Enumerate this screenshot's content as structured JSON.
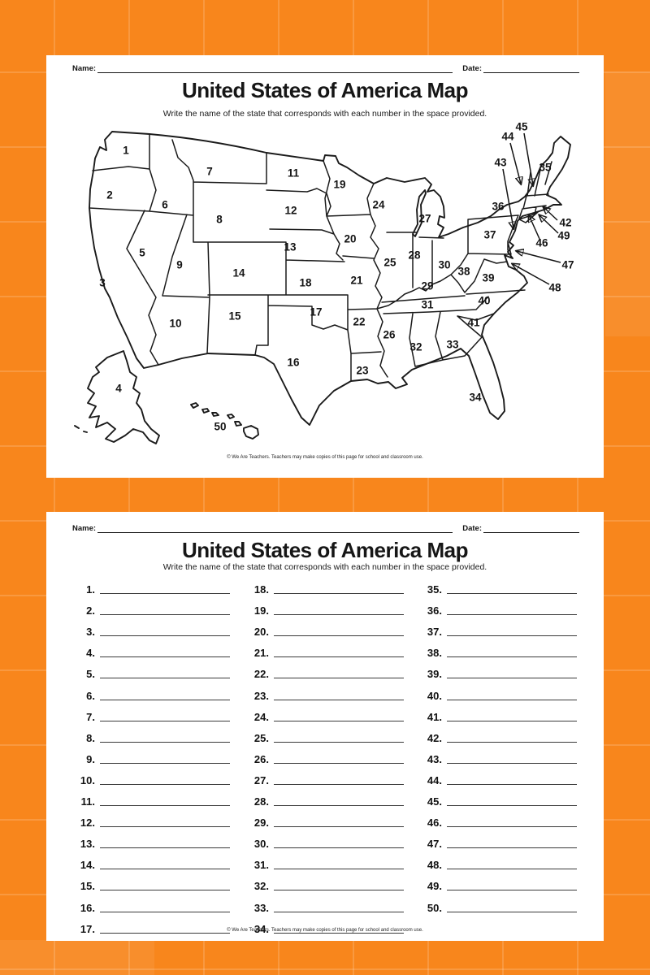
{
  "page1": {
    "name_label": "Name:",
    "date_label": "Date:",
    "title": "United States of America Map",
    "subtitle": "Write the name of the state that corresponds with each number in the space provided.",
    "footer": "© We Are Teachers. Teachers may make copies of this page for school and classroom use.",
    "map": {
      "state_numbers": [
        [
          1,
          75,
          37
        ],
        [
          2,
          55,
          92
        ],
        [
          3,
          46,
          200
        ],
        [
          4,
          66,
          330
        ],
        [
          5,
          95,
          163
        ],
        [
          6,
          123,
          104
        ],
        [
          7,
          178,
          63
        ],
        [
          8,
          190,
          122
        ],
        [
          9,
          141,
          178
        ],
        [
          10,
          136,
          250
        ],
        [
          11,
          281,
          65
        ],
        [
          12,
          278,
          111
        ],
        [
          13,
          277,
          156
        ],
        [
          14,
          214,
          188
        ],
        [
          15,
          209,
          241
        ],
        [
          16,
          281,
          298
        ],
        [
          17,
          309,
          236
        ],
        [
          18,
          296,
          200
        ],
        [
          19,
          338,
          79
        ],
        [
          20,
          351,
          146
        ],
        [
          21,
          359,
          197
        ],
        [
          22,
          362,
          248
        ],
        [
          23,
          366,
          308
        ],
        [
          24,
          386,
          104
        ],
        [
          25,
          400,
          175
        ],
        [
          26,
          399,
          264
        ],
        [
          27,
          443,
          121
        ],
        [
          28,
          430,
          166
        ],
        [
          29,
          446,
          204
        ],
        [
          30,
          467,
          178
        ],
        [
          31,
          446,
          227
        ],
        [
          32,
          432,
          279
        ],
        [
          33,
          477,
          276
        ],
        [
          34,
          505,
          341
        ],
        [
          35,
          591,
          58
        ],
        [
          36,
          533,
          106
        ],
        [
          37,
          523,
          141
        ],
        [
          38,
          491,
          186
        ],
        [
          39,
          521,
          194
        ],
        [
          40,
          516,
          222
        ],
        [
          41,
          503,
          249
        ],
        [
          42,
          616,
          126
        ],
        [
          43,
          536,
          52
        ],
        [
          44,
          545,
          20
        ],
        [
          45,
          562,
          8
        ],
        [
          46,
          587,
          151
        ],
        [
          47,
          619,
          178
        ],
        [
          48,
          603,
          206
        ],
        [
          49,
          614,
          142
        ],
        [
          50,
          191,
          377
        ]
      ],
      "callout_arrows": [
        [
          42,
          606,
          123,
          589,
          107
        ],
        [
          43,
          539,
          60,
          552,
          133
        ],
        [
          44,
          548,
          28,
          561,
          78
        ],
        [
          45,
          565,
          16,
          576,
          80
        ],
        [
          46,
          584,
          146,
          571,
          117
        ],
        [
          47,
          610,
          175,
          556,
          161
        ],
        [
          48,
          596,
          202,
          551,
          177
        ],
        [
          49,
          607,
          139,
          584,
          117
        ]
      ]
    }
  },
  "page2": {
    "name_label": "Name:",
    "date_label": "Date:",
    "title": "United States of America Map",
    "subtitle": "Write the name of the state that corresponds with each number in the space provided.",
    "footer": "© We Are Teachers. Teachers may make copies of this page for school and classroom use.",
    "list_columns": [
      [
        1,
        2,
        3,
        4,
        5,
        6,
        7,
        8,
        9,
        10,
        11,
        12,
        13,
        14,
        15,
        16,
        17
      ],
      [
        18,
        19,
        20,
        21,
        22,
        23,
        24,
        25,
        26,
        27,
        28,
        29,
        30,
        31,
        32,
        33,
        34
      ],
      [
        35,
        36,
        37,
        38,
        39,
        40,
        41,
        42,
        43,
        44,
        45,
        46,
        47,
        48,
        49,
        50
      ]
    ]
  }
}
